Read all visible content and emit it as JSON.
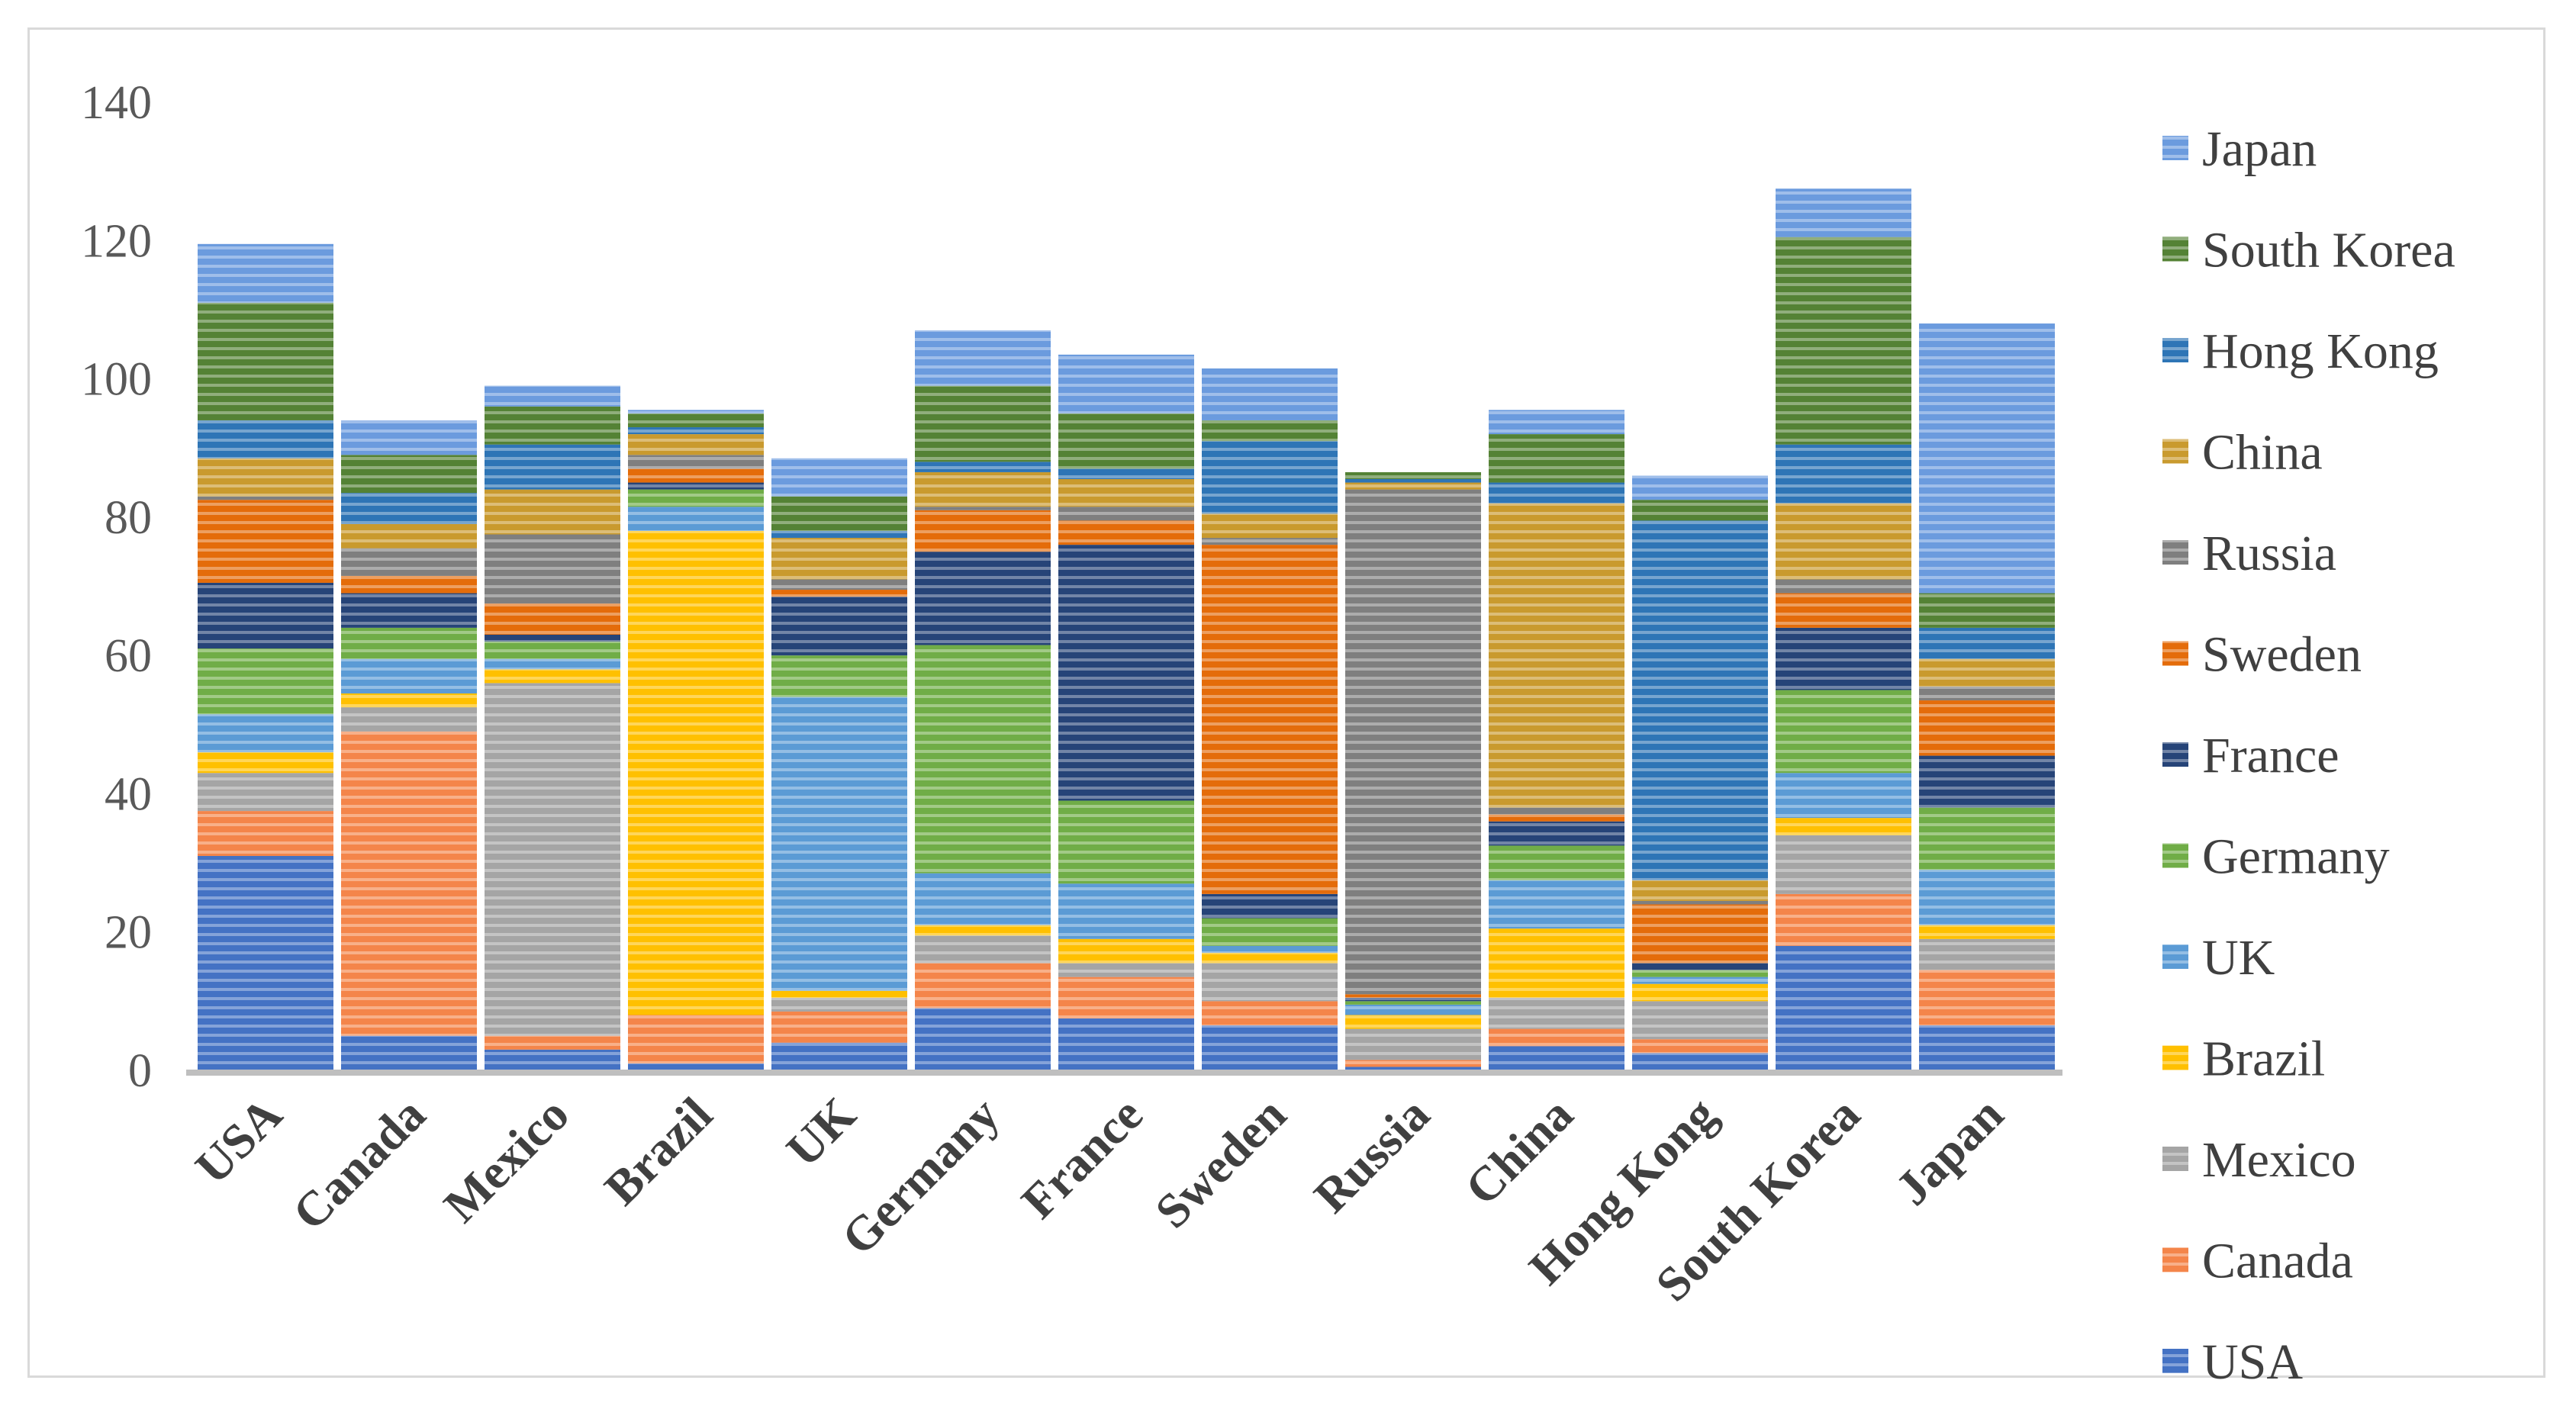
{
  "chart_data": {
    "type": "bar",
    "stacked": true,
    "title": "",
    "xlabel": "",
    "ylabel": "",
    "ylim": [
      0,
      140
    ],
    "yticks": [
      0,
      20,
      40,
      60,
      80,
      100,
      120,
      140
    ],
    "grid": false,
    "legend_position": "right",
    "categories": [
      "USA",
      "Canada",
      "Mexico",
      "Brazil",
      "UK",
      "Germany",
      "France",
      "Sweden",
      "Russia",
      "China",
      "Hong Kong",
      "South Korea",
      "Japan"
    ],
    "series": [
      {
        "name": "USA",
        "color": "#4472c4",
        "values": [
          31,
          5,
          3,
          1,
          4,
          9,
          7.5,
          6.5,
          0.5,
          3.5,
          2.5,
          18,
          6.5
        ]
      },
      {
        "name": "Canada",
        "color": "#f4854a",
        "values": [
          6.5,
          44,
          2,
          7,
          4.5,
          6.5,
          6,
          3.5,
          1,
          2.5,
          2,
          7.5,
          8
        ]
      },
      {
        "name": "Mexico",
        "color": "#a5a5a5",
        "values": [
          5.5,
          3.5,
          51,
          0,
          2,
          4,
          2,
          5.5,
          4.5,
          4.5,
          5.5,
          8.5,
          4.5
        ]
      },
      {
        "name": "Brazil",
        "color": "#ffc000",
        "values": [
          3,
          2,
          2,
          70,
          1,
          1.5,
          3.5,
          1.5,
          2,
          10,
          2.5,
          2.5,
          2
        ]
      },
      {
        "name": "UK",
        "color": "#5b9bd5",
        "values": [
          5.5,
          5,
          1.5,
          3.5,
          42.5,
          7.5,
          8,
          1,
          1.5,
          7,
          1,
          6.5,
          8
        ]
      },
      {
        "name": "Germany",
        "color": "#70ad47",
        "values": [
          9.5,
          4.5,
          2.5,
          2.5,
          6,
          33,
          12,
          4,
          0.5,
          5,
          1,
          12,
          9
        ]
      },
      {
        "name": "France",
        "color": "#264478",
        "values": [
          9.5,
          5,
          1,
          1,
          8.5,
          13.5,
          37,
          3.5,
          0.5,
          3.5,
          1,
          9,
          7.5
        ]
      },
      {
        "name": "Sweden",
        "color": "#e46c0a",
        "values": [
          12,
          2.5,
          4.5,
          2,
          1,
          6,
          3.5,
          50.5,
          0.5,
          1,
          8.5,
          5,
          8
        ]
      },
      {
        "name": "Russia",
        "color": "#7f7f7f",
        "values": [
          0.5,
          4,
          10,
          2,
          1.5,
          0.5,
          2,
          1,
          73,
          1,
          0.5,
          2,
          2
        ]
      },
      {
        "name": "China",
        "color": "#c99a2e",
        "values": [
          5.5,
          3.5,
          6.5,
          3,
          6,
          5,
          4,
          3.5,
          1,
          44,
          3,
          11,
          4
        ]
      },
      {
        "name": "Hong Kong",
        "color": "#2e75b6",
        "values": [
          5.5,
          4.5,
          6.5,
          1,
          1,
          1.5,
          1.5,
          10.5,
          0.5,
          3,
          52,
          8.5,
          4.5
        ]
      },
      {
        "name": "South Korea",
        "color": "#548235",
        "values": [
          17,
          5.5,
          5.5,
          2,
          5,
          11,
          8,
          3,
          1,
          7,
          3,
          30,
          5
        ]
      },
      {
        "name": "Japan",
        "color": "#6b9bde",
        "values": [
          8.5,
          5,
          3,
          0.5,
          5.5,
          8,
          8.5,
          7.5,
          0,
          3.5,
          3.5,
          7,
          39
        ]
      }
    ]
  }
}
